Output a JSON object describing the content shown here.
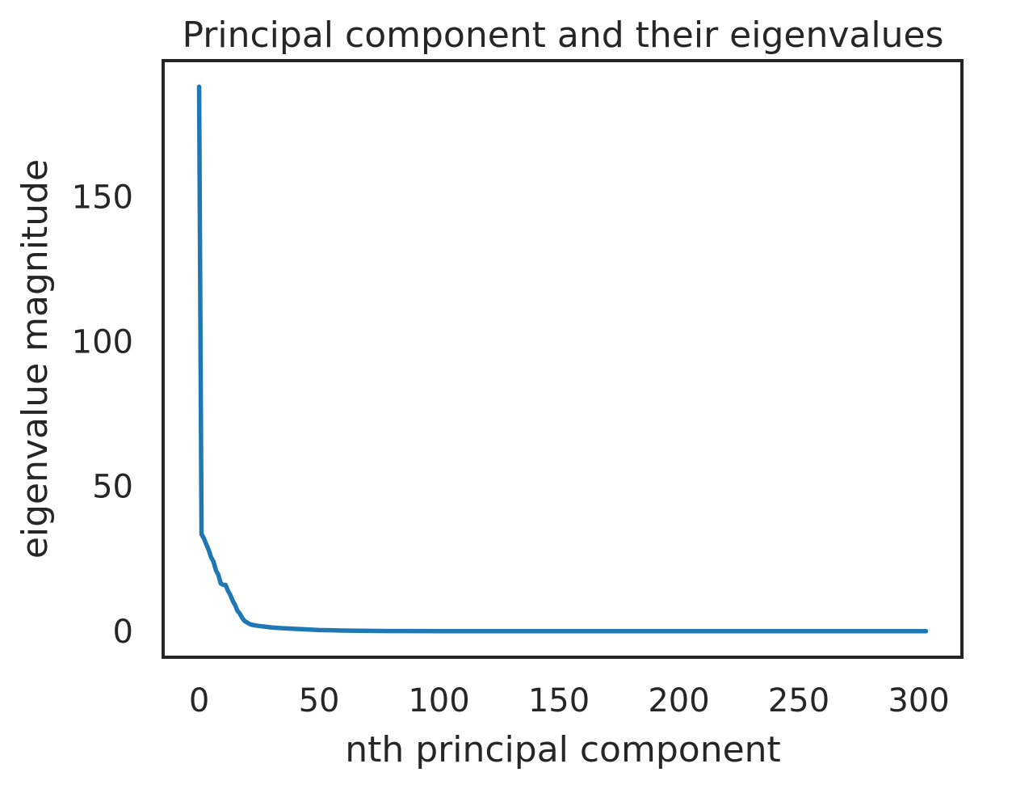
{
  "chart_data": {
    "type": "line",
    "title": "Principal component and their eigenvalues",
    "xlabel": "nth principal component",
    "ylabel": "eigenvalue magnitude",
    "xlim": [
      -15,
      318
    ],
    "ylim": [
      -9,
      197
    ],
    "xticks": [
      0,
      50,
      100,
      150,
      200,
      250,
      300
    ],
    "yticks": [
      0,
      50,
      100,
      150
    ],
    "grid": false,
    "legend": false,
    "series": [
      {
        "color": "#1f77b4",
        "x": [
          0,
          1,
          2,
          3,
          4,
          5,
          6,
          7,
          8,
          9,
          10,
          11,
          12,
          13,
          14,
          15,
          16,
          17,
          18,
          19,
          20,
          21,
          22,
          24,
          26,
          28,
          30,
          35,
          40,
          45,
          50,
          55,
          60,
          70,
          80,
          100,
          150,
          200,
          250,
          303
        ],
        "y": [
          188,
          33.5,
          32,
          30,
          28,
          25.5,
          24,
          21,
          19.5,
          16.5,
          16,
          16,
          14,
          12.5,
          10.5,
          9,
          7,
          6,
          4.5,
          3.5,
          3,
          2.5,
          2.2,
          1.9,
          1.7,
          1.5,
          1.3,
          1.0,
          0.8,
          0.6,
          0.4,
          0.3,
          0.2,
          0.1,
          0.05,
          0.02,
          0.01,
          0.005,
          0.003,
          0.001
        ]
      }
    ]
  }
}
